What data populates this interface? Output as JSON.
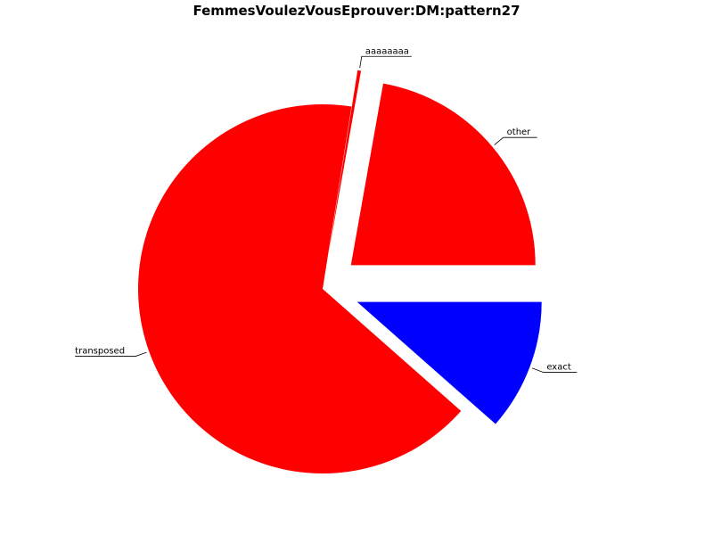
{
  "chart_data": {
    "type": "pie",
    "title": "FemmesVoulezVousEprouver:DM:pattern27",
    "slices": [
      {
        "label": "exact",
        "value": 11.5,
        "color": "#0000ff",
        "exploded": true
      },
      {
        "label": "transposed",
        "value": 66.0,
        "color": "#ff0000",
        "exploded": false
      },
      {
        "label": "",
        "value": 0.3,
        "color": "#ff0000",
        "exploded": true
      },
      {
        "label": "other",
        "value": 22.2,
        "color": "#ff0000",
        "exploded": true
      }
    ],
    "overlapping_label_text": "aaaaaaaa",
    "legend": false
  }
}
